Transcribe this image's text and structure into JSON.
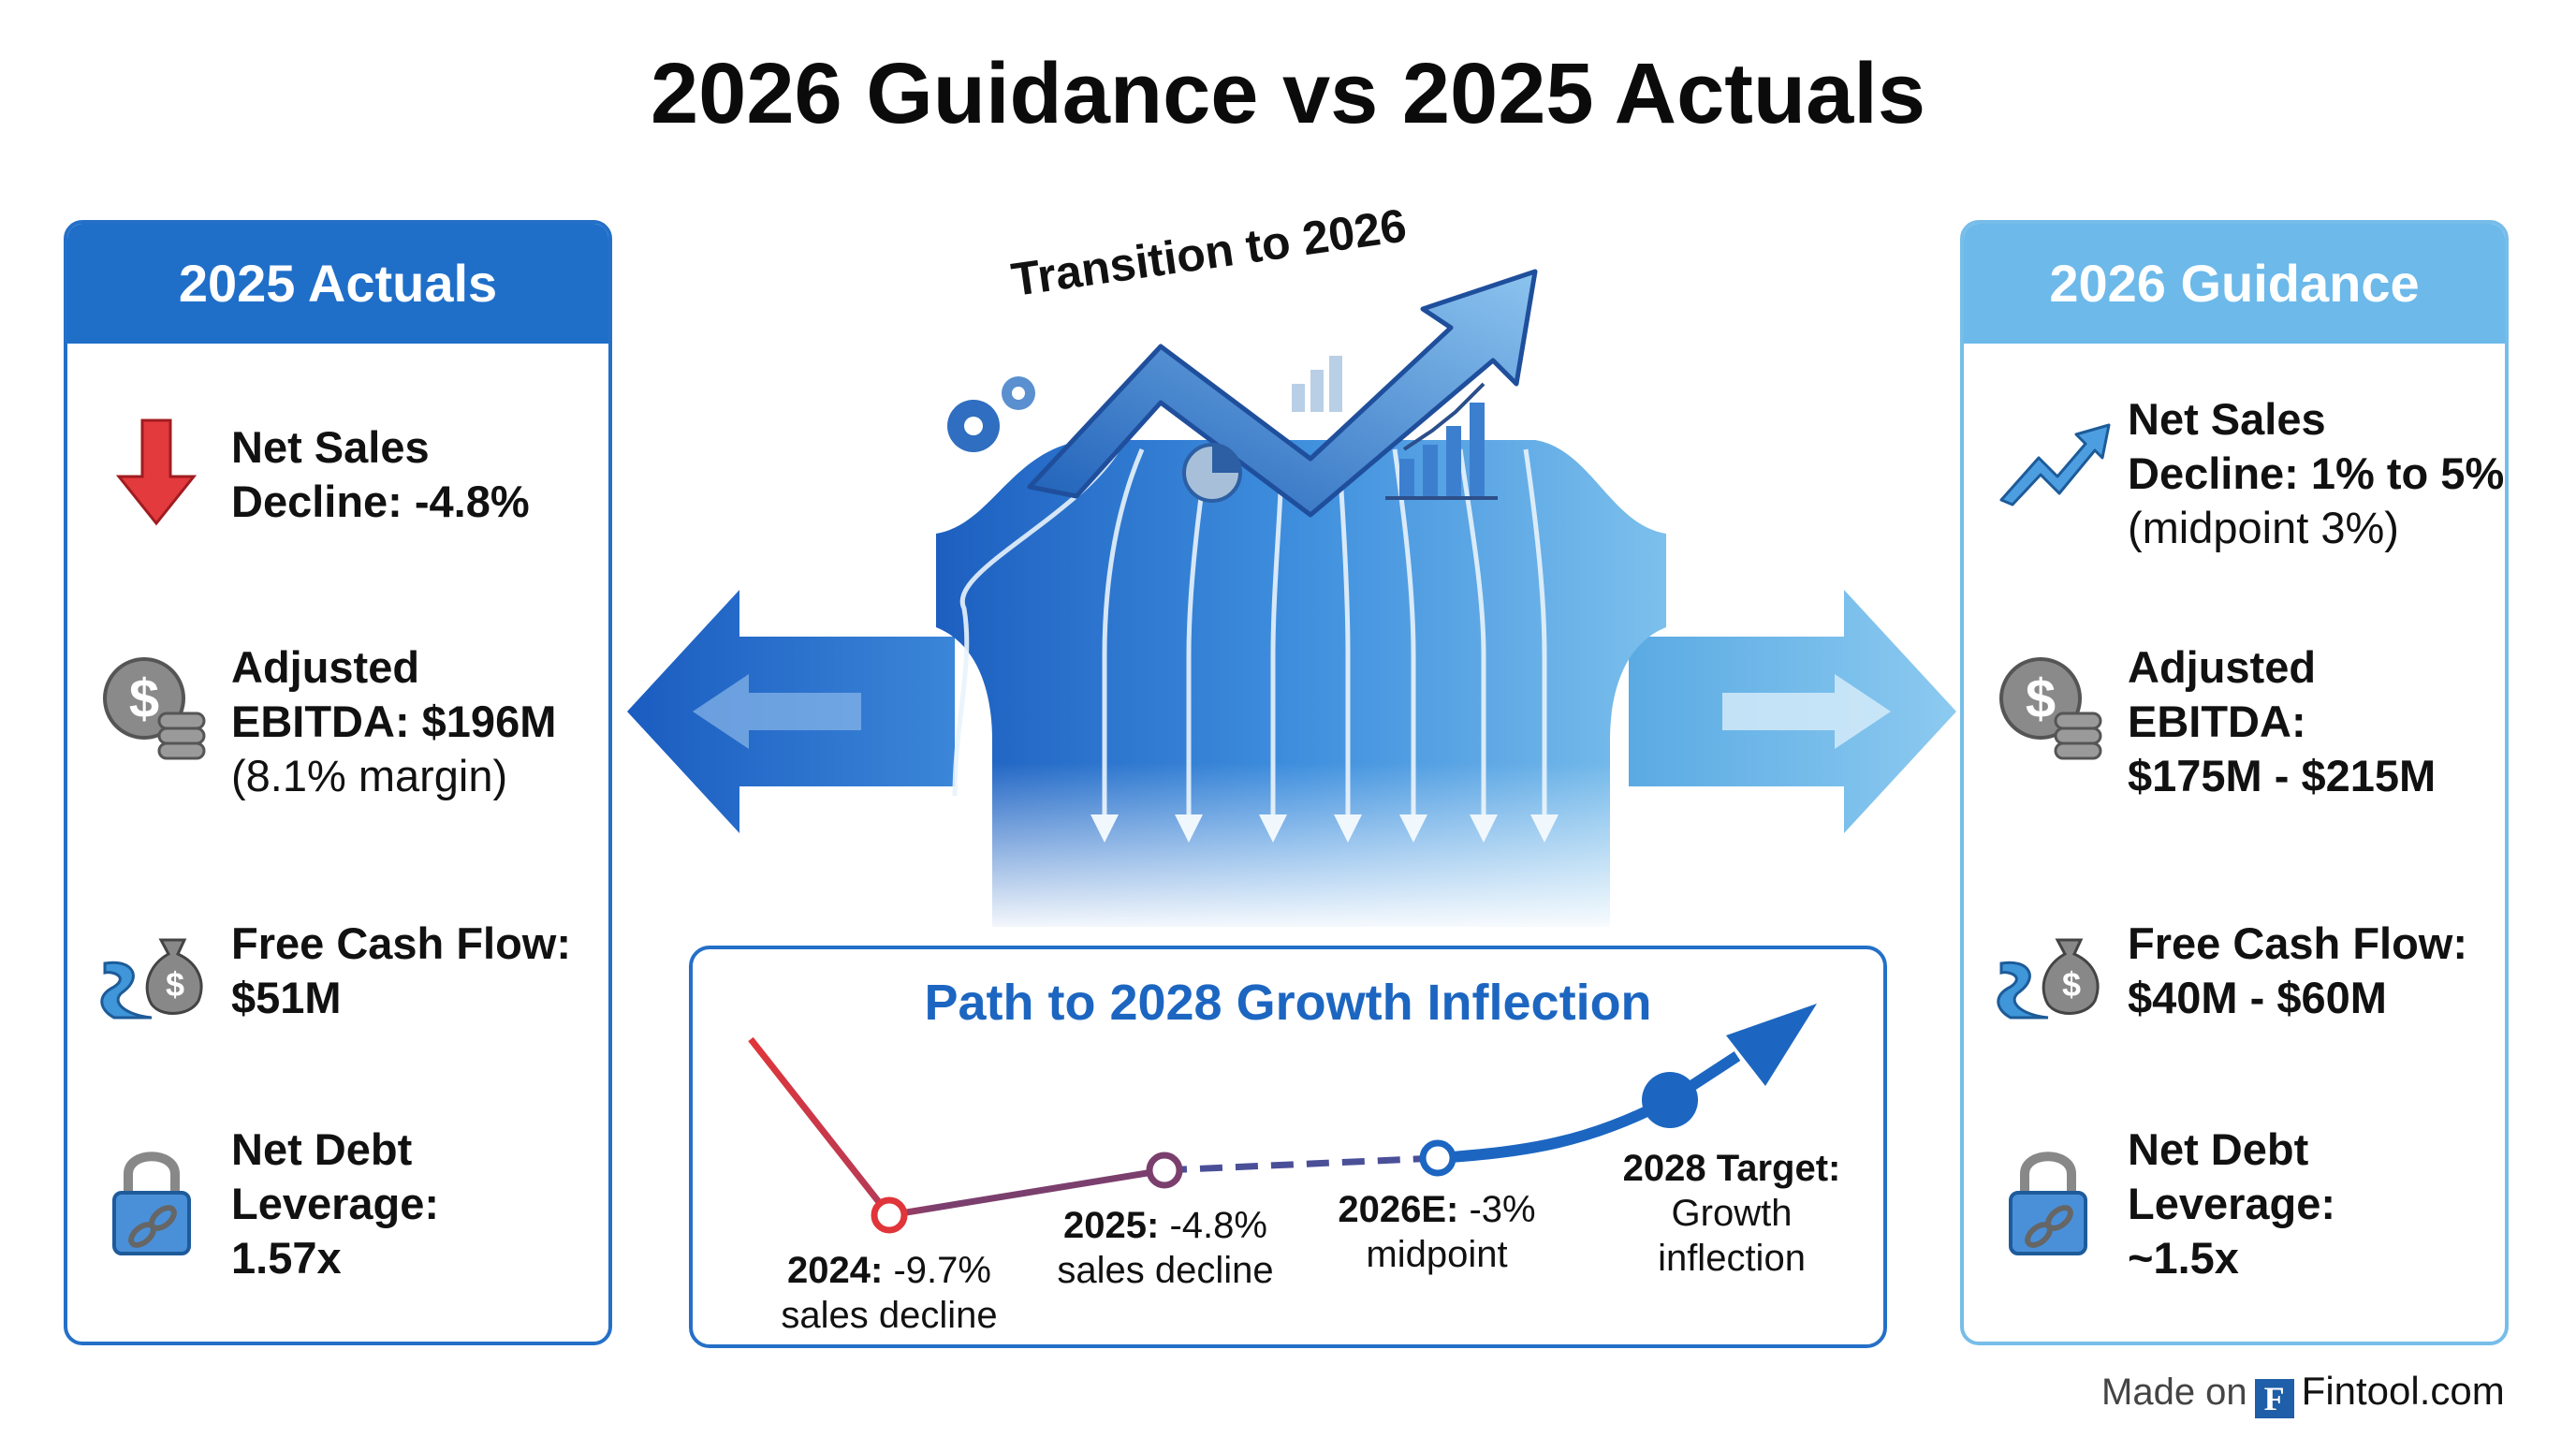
{
  "title": "2026 Guidance vs 2025 Actuals",
  "transition_label": "Transition to 2026",
  "colors": {
    "dark_blue": "#1f6fc9",
    "light_blue": "#6cb9ea",
    "red": "#e0353a",
    "purple": "#7b3f6e"
  },
  "left_panel": {
    "header": "2025 Actuals",
    "items": [
      {
        "icon": "down-arrow-icon",
        "bold": [
          "Net Sales",
          "Decline: -4.8%"
        ],
        "normal": []
      },
      {
        "icon": "dollar-coins-icon",
        "bold": [
          "Adjusted",
          "EBITDA: $196M"
        ],
        "normal": [
          "(8.1% margin)"
        ]
      },
      {
        "icon": "river-money-bag-icon",
        "bold": [
          "Free Cash Flow:",
          "$51M"
        ],
        "normal": []
      },
      {
        "icon": "padlock-chain-icon",
        "bold": [
          "Net Debt",
          "Leverage:",
          "1.57x"
        ],
        "normal": []
      }
    ]
  },
  "right_panel": {
    "header": "2026 Guidance",
    "items": [
      {
        "icon": "up-trend-arrow-icon",
        "bold": [
          "Net Sales",
          "Decline: 1% to 5%"
        ],
        "normal": [
          "(midpoint 3%)"
        ]
      },
      {
        "icon": "dollar-coins-icon",
        "bold": [
          "Adjusted",
          "EBITDA:",
          "$175M - $215M"
        ],
        "normal": []
      },
      {
        "icon": "river-money-bag-icon",
        "bold": [
          "Free Cash Flow:",
          "$40M - $60M"
        ],
        "normal": []
      },
      {
        "icon": "padlock-chain-icon",
        "bold": [
          "Net Debt",
          "Leverage:",
          "~1.5x"
        ],
        "normal": []
      }
    ]
  },
  "path": {
    "title": "Path to 2028 Growth Inflection",
    "points": [
      {
        "bold": "2024:",
        "rest": " -9.7%",
        "line2": "sales decline"
      },
      {
        "bold": "2025:",
        "rest": " -4.8%",
        "line2": "sales decline"
      },
      {
        "bold": "2026E:",
        "rest": " -3%",
        "line2": "midpoint"
      },
      {
        "bold": "2028 Target:",
        "rest": "",
        "line2": "Growth",
        "line3": "inflection"
      }
    ]
  },
  "footer": {
    "made_on": "Made on",
    "logo_letter": "F",
    "brand": "Fintool.com"
  }
}
